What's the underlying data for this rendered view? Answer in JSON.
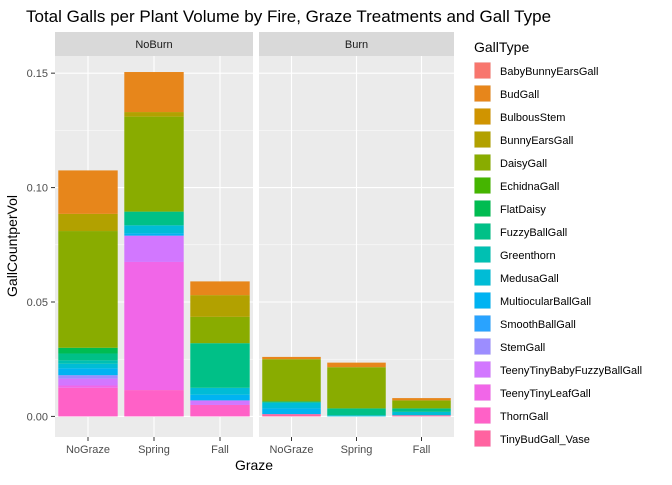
{
  "chart_data": {
    "type": "bar",
    "stacked": true,
    "title": "Total Galls per Plant Volume by Fire, Graze Treatments and Gall Type",
    "xlabel": "Graze",
    "ylabel": "GallCountperVol",
    "ylim": [
      -0.009,
      0.1575
    ],
    "yticks": [
      0.0,
      0.05,
      0.1,
      0.15
    ],
    "ytick_labels": [
      "0.00",
      "0.05",
      "0.10",
      "0.15"
    ],
    "grid": true,
    "legend_title": "GallType",
    "legend_position": "right",
    "categories": [
      "NoGraze",
      "Spring",
      "Fall"
    ],
    "facets": [
      "NoBurn",
      "Burn"
    ],
    "series": [
      {
        "name": "BabyBunnyEarsGall",
        "color": "#F8766D",
        "values": [
          [
            0.0,
            0.0,
            0.0
          ],
          [
            0.0,
            0.0,
            0.0
          ]
        ]
      },
      {
        "name": "BudGall",
        "color": "#E7861B",
        "values": [
          [
            0.019,
            0.0175,
            0.006
          ],
          [
            0.001,
            0.002,
            0.001
          ]
        ]
      },
      {
        "name": "BulbousStem",
        "color": "#D09400",
        "values": [
          [
            0.0,
            0.0,
            0.0
          ],
          [
            0.0,
            0.0,
            0.0
          ]
        ]
      },
      {
        "name": "BunnyEarsGall",
        "color": "#B2A100",
        "values": [
          [
            0.0075,
            0.002,
            0.0095
          ],
          [
            0.0,
            0.0,
            0.0
          ]
        ]
      },
      {
        "name": "DaisyGall",
        "color": "#89AC00",
        "values": [
          [
            0.051,
            0.0415,
            0.0115
          ],
          [
            0.0185,
            0.018,
            0.0035
          ]
        ]
      },
      {
        "name": "EchidnaGall",
        "color": "#45B500",
        "values": [
          [
            0.0,
            0.0,
            0.0
          ],
          [
            0.0,
            0.0,
            0.0
          ]
        ]
      },
      {
        "name": "FlatDaisy",
        "color": "#00BC51",
        "values": [
          [
            0.0025,
            0.0,
            0.0
          ],
          [
            0.0,
            0.0,
            0.0
          ]
        ]
      },
      {
        "name": "FuzzyBallGall",
        "color": "#00C087",
        "values": [
          [
            0.003,
            0.006,
            0.0195
          ],
          [
            0.0005,
            0.003,
            0.0015
          ]
        ]
      },
      {
        "name": "Greenthorn",
        "color": "#00C0B2",
        "values": [
          [
            0.0015,
            0.0,
            0.0
          ],
          [
            0.0,
            0.0,
            0.0
          ]
        ]
      },
      {
        "name": "MedusaGall",
        "color": "#00BCD6",
        "values": [
          [
            0.002,
            0.0035,
            0.003
          ],
          [
            0.0025,
            0.0005,
            0.0015
          ]
        ]
      },
      {
        "name": "MulticularBallGall",
        "color": "#00B3F2",
        "values": [
          [
            0.003,
            0.001,
            0.0025
          ],
          [
            0.0025,
            0.0,
            0.0
          ]
        ]
      },
      {
        "name": "SmoothBallGall",
        "color": "#29A3FF",
        "values": [
          [
            0.0,
            0.0,
            0.0
          ],
          [
            0.0,
            0.0,
            0.0
          ]
        ]
      },
      {
        "name": "StemGall",
        "color": "#9C8DFF",
        "values": [
          [
            0.0015,
            0.0,
            0.0
          ],
          [
            0.0,
            0.0,
            0.0
          ]
        ]
      },
      {
        "name": "TeenyTinyBabyFuzzyBallGall",
        "color": "#D277FF",
        "values": [
          [
            0.003,
            0.0115,
            0.002
          ],
          [
            0.0,
            0.0,
            0.0
          ]
        ]
      },
      {
        "name": "TeenyTinyLeafGall",
        "color": "#F166E8",
        "values": [
          [
            0.001,
            0.056,
            0.0
          ],
          [
            0.0,
            0.0,
            0.0
          ]
        ]
      },
      {
        "name": "ThornGall",
        "color": "#FF61C7",
        "values": [
          [
            0.0125,
            0.0115,
            0.005
          ],
          [
            0.0,
            0.0,
            0.0
          ]
        ]
      },
      {
        "name": "TinyBudGall_Vase",
        "color": "#FF63A0",
        "values": [
          [
            0.0,
            0.0,
            0.0
          ],
          [
            0.001,
            0.0,
            0.0005
          ]
        ]
      }
    ],
    "legend_labels": [
      "BabyBunnyEarsGall",
      "BudGall",
      "BulbousStem",
      "BunnyEarsGall",
      "DaisyGall",
      "EchidnaGall",
      "FlatDaisy",
      "FuzzyBallGall",
      "Greenthorn",
      "MedusaGall",
      "MultiocularBallGall",
      "SmoothBallGall",
      "StemGall",
      "TeenyTinyBabyFuzzyBallGall",
      "TeenyTinyLeafGall",
      "ThornGall",
      "TinyBudGall_Vase"
    ]
  }
}
